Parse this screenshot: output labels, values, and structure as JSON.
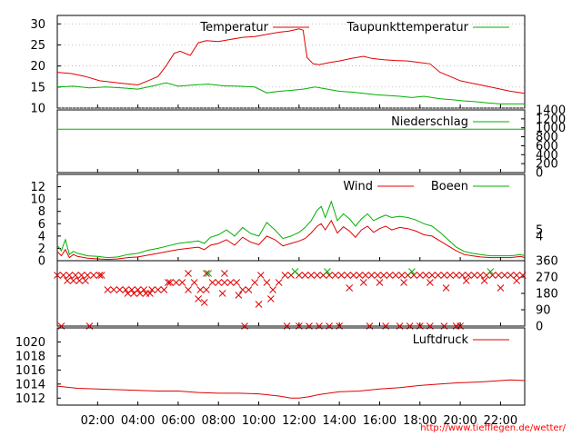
{
  "footer_url": "http://www.tiefflegen.de/wetter/",
  "x_axis": {
    "ticks": [
      "02:00",
      "04:00",
      "06:00",
      "08:00",
      "10:00",
      "12:00",
      "14:00",
      "16:00",
      "18:00",
      "20:00",
      "22:00"
    ],
    "range_hours": [
      0,
      23.2
    ]
  },
  "colors": {
    "red": "#e00000",
    "green": "#00b000",
    "grid": "#999999"
  },
  "chart_data": [
    {
      "type": "line",
      "panel": "temperature",
      "ylim": [
        10,
        32
      ],
      "y_ticks": [
        "10",
        "15",
        "20",
        "25",
        "30"
      ],
      "legend": [
        "Temperatur",
        "Taupunkttemperatur"
      ],
      "legend_placement": "top",
      "grid": true,
      "series": [
        {
          "name": "Temperatur",
          "color": "#e00000",
          "x": [
            0,
            0.7,
            1.4,
            2.1,
            3,
            4,
            4.5,
            5,
            5.4,
            5.8,
            6.1,
            6.6,
            7,
            7.4,
            8,
            8.6,
            9.2,
            9.8,
            10.4,
            11,
            11.5,
            12,
            12.2,
            12.4,
            12.7,
            13,
            13.5,
            14,
            14.6,
            15.2,
            15.6,
            16.2,
            16.8,
            17.4,
            18,
            18.5,
            19,
            19.5,
            20,
            20.5,
            21,
            21.5,
            22,
            22.5,
            23.2
          ],
          "y": [
            18.5,
            18.2,
            17.5,
            16.5,
            16.0,
            15.5,
            16.5,
            17.5,
            20.0,
            23.0,
            23.5,
            22.5,
            25.5,
            26.0,
            25.8,
            26.3,
            26.8,
            27.0,
            27.5,
            28.0,
            28.3,
            28.8,
            28.5,
            22.0,
            20.5,
            20.3,
            20.8,
            21.2,
            21.8,
            22.3,
            21.8,
            21.5,
            21.3,
            21.2,
            20.8,
            20.5,
            18.5,
            17.5,
            16.5,
            16.0,
            15.5,
            15.0,
            14.5,
            14.0,
            13.5
          ]
        },
        {
          "name": "Taupunkttemperatur",
          "color": "#00b000",
          "x": [
            0,
            0.8,
            1.6,
            2.4,
            3.2,
            4,
            4.8,
            5.4,
            6,
            6.8,
            7.5,
            8.2,
            9,
            9.8,
            10.4,
            11,
            11.6,
            12.2,
            12.8,
            13.4,
            14,
            14.6,
            15.2,
            15.8,
            16.4,
            17,
            17.6,
            18.2,
            19,
            19.6,
            20.2,
            20.8,
            21.4,
            22,
            22.6,
            23.2
          ],
          "y": [
            15.0,
            15.2,
            14.8,
            15.0,
            14.8,
            14.5,
            15.3,
            16.0,
            15.2,
            15.5,
            15.7,
            15.3,
            15.2,
            15.0,
            13.6,
            14.0,
            14.2,
            14.5,
            15.0,
            14.5,
            14.0,
            13.8,
            13.5,
            13.2,
            13.0,
            12.8,
            12.5,
            12.8,
            12.2,
            12.0,
            11.7,
            11.5,
            11.2,
            11.0,
            11.0,
            11.0
          ]
        }
      ]
    },
    {
      "type": "line",
      "panel": "precipitation",
      "ylim": [
        0,
        1400
      ],
      "y_ticks": [
        "0",
        "200",
        "400",
        "600",
        "800",
        "1000",
        "1200",
        "1400"
      ],
      "legend": [
        "Niederschlag"
      ],
      "legend_placement": "top-right",
      "series": [
        {
          "name": "Niederschlag",
          "color": "#00b000",
          "x": [
            0,
            23.2
          ],
          "y": [
            968,
            968
          ]
        }
      ]
    },
    {
      "type": "line",
      "panel": "wind",
      "ylim": [
        0,
        14
      ],
      "y_ticks": [
        "0",
        "2",
        "4",
        "6",
        "8",
        "10",
        "12"
      ],
      "legend": [
        "Wind",
        "Boeen"
      ],
      "legend_placement": "top",
      "right_ticks": [
        "4",
        "5"
      ],
      "series": [
        {
          "name": "Wind",
          "color": "#e00000",
          "x": [
            0,
            0.2,
            0.4,
            0.6,
            0.8,
            1,
            1.5,
            2,
            2.5,
            3,
            3.5,
            4,
            4.5,
            5,
            5.5,
            6,
            6.5,
            7,
            7.3,
            7.6,
            8,
            8.4,
            8.8,
            9.2,
            9.6,
            10,
            10.4,
            10.8,
            11.2,
            11.6,
            12,
            12.3,
            12.6,
            12.9,
            13.1,
            13.3,
            13.6,
            13.9,
            14.2,
            14.5,
            14.8,
            15.1,
            15.4,
            15.7,
            16,
            16.3,
            16.6,
            17,
            17.4,
            17.8,
            18.2,
            18.6,
            19,
            19.4,
            19.8,
            20.2,
            20.6,
            21,
            21.5,
            22,
            22.5,
            23,
            23.2
          ],
          "y": [
            1.5,
            0.8,
            1.8,
            0.5,
            1.0,
            0.7,
            0.4,
            0.3,
            0.2,
            0.3,
            0.5,
            0.6,
            0.9,
            1.2,
            1.5,
            1.8,
            2.0,
            2.2,
            1.8,
            2.5,
            2.8,
            3.4,
            2.5,
            3.8,
            3.0,
            2.6,
            4.0,
            3.4,
            2.4,
            2.8,
            3.2,
            3.6,
            4.5,
            5.6,
            6.0,
            5.0,
            6.5,
            4.5,
            5.5,
            4.8,
            3.8,
            5.0,
            5.6,
            4.6,
            5.2,
            5.6,
            5.0,
            5.4,
            5.2,
            4.8,
            4.2,
            4.0,
            3.2,
            2.4,
            1.6,
            1.0,
            0.8,
            0.6,
            0.5,
            0.5,
            0.5,
            0.7,
            0.5
          ]
        },
        {
          "name": "Boeen",
          "color": "#00b000",
          "x": [
            0,
            0.2,
            0.4,
            0.6,
            0.8,
            1,
            1.5,
            2,
            2.5,
            3,
            3.5,
            4,
            4.5,
            5,
            5.5,
            6,
            6.5,
            7,
            7.3,
            7.6,
            8,
            8.4,
            8.8,
            9.2,
            9.6,
            10,
            10.4,
            10.8,
            11.2,
            11.6,
            12,
            12.3,
            12.6,
            12.9,
            13.1,
            13.3,
            13.6,
            13.9,
            14.2,
            14.5,
            14.8,
            15.1,
            15.4,
            15.7,
            16,
            16.3,
            16.6,
            17,
            17.4,
            17.8,
            18.2,
            18.6,
            19,
            19.4,
            19.8,
            20.2,
            20.6,
            21,
            21.5,
            22,
            22.5,
            23,
            23.2
          ],
          "y": [
            2.5,
            1.6,
            3.4,
            1.0,
            1.5,
            1.2,
            0.8,
            0.7,
            0.5,
            0.6,
            1.0,
            1.2,
            1.7,
            2.0,
            2.4,
            2.8,
            3.0,
            3.2,
            2.8,
            3.8,
            4.2,
            5.0,
            4.0,
            5.4,
            4.4,
            4.0,
            6.2,
            5.0,
            3.6,
            4.0,
            4.6,
            5.4,
            6.5,
            8.2,
            8.8,
            7.0,
            9.6,
            6.5,
            7.6,
            6.8,
            5.6,
            6.8,
            7.6,
            6.5,
            7.0,
            7.4,
            7.0,
            7.2,
            7.0,
            6.6,
            6.0,
            5.6,
            4.6,
            3.4,
            2.2,
            1.5,
            1.2,
            1.0,
            0.8,
            0.8,
            0.8,
            1.0,
            0.8
          ]
        }
      ]
    },
    {
      "type": "scatter",
      "panel": "wind_direction",
      "ylim": [
        0,
        360
      ],
      "y_ticks": [
        "0",
        "90",
        "180",
        "270",
        "360"
      ],
      "marker": "x",
      "series": [
        {
          "name": "",
          "color": "#e00000",
          "x": [
            0,
            0.3,
            0.6,
            0.9,
            1.2,
            1.5,
            1.8,
            2.1,
            0.5,
            0.8,
            1.1,
            1.4,
            2.2,
            2.5,
            2.8,
            3.1,
            3.4,
            3.7,
            4,
            4.3,
            3.5,
            3.8,
            4.1,
            4.4,
            4.7,
            5,
            5.3,
            5.6,
            5.9,
            6.2,
            6.5,
            6.8,
            7.1,
            7.4,
            7.7,
            8,
            8.3,
            8.6,
            8.9,
            9.2,
            9.5,
            9.8,
            10.1,
            10.4,
            10.7,
            11,
            11.3,
            11.6,
            7,
            7.3,
            8.2,
            9,
            10,
            10.6,
            4.6,
            5.5,
            12,
            12.3,
            12.6,
            12.9,
            13.2,
            13.5,
            13.8,
            14.1,
            14.4,
            14.7,
            15,
            15.3,
            15.6,
            15.9,
            16.2,
            16.5,
            16.8,
            17.1,
            17.4,
            17.7,
            18,
            18.3,
            18.6,
            18.9,
            19.2,
            19.5,
            19.8,
            20.1,
            20.4,
            20.7,
            21,
            21.3,
            21.6,
            21.9,
            22.2,
            22.5,
            22.8,
            23.1,
            14.5,
            15.2,
            16,
            17.2,
            18.5,
            19.3,
            20.3,
            21.2,
            22,
            22.8,
            0.2,
            1.6,
            9.3,
            11.4,
            12,
            12.5,
            13,
            13.5,
            14,
            15.5,
            16.3,
            17,
            17.5,
            18,
            18.5,
            19.2,
            19.8,
            20,
            6.5,
            7.4,
            8.3
          ],
          "y": [
            280,
            280,
            280,
            280,
            280,
            280,
            280,
            280,
            250,
            250,
            250,
            250,
            280,
            200,
            200,
            200,
            200,
            200,
            200,
            200,
            180,
            180,
            180,
            180,
            200,
            200,
            200,
            240,
            240,
            240,
            200,
            240,
            200,
            200,
            240,
            240,
            240,
            240,
            240,
            200,
            200,
            240,
            280,
            240,
            200,
            240,
            280,
            280,
            150,
            130,
            180,
            170,
            120,
            150,
            180,
            240,
            280,
            280,
            280,
            280,
            280,
            280,
            280,
            280,
            280,
            280,
            280,
            280,
            280,
            280,
            280,
            280,
            280,
            280,
            280,
            280,
            280,
            280,
            280,
            280,
            280,
            280,
            280,
            280,
            280,
            280,
            280,
            280,
            280,
            280,
            280,
            280,
            280,
            280,
            210,
            240,
            240,
            240,
            240,
            210,
            250,
            250,
            210,
            250,
            0,
            0,
            0,
            0,
            0,
            0,
            0,
            0,
            0,
            0,
            0,
            0,
            0,
            0,
            0,
            0,
            0,
            0,
            290,
            290,
            290
          ]
        },
        {
          "name": "",
          "color": "#00b000",
          "x": [
            7.5,
            11.8,
            13.4,
            17.6,
            21.5
          ],
          "y": [
            290,
            300,
            300,
            300,
            300
          ]
        }
      ]
    },
    {
      "type": "line",
      "panel": "pressure",
      "ylim": [
        1011,
        1022
      ],
      "y_ticks": [
        "1012",
        "1014",
        "1016",
        "1018",
        "1020"
      ],
      "legend": [
        "Luftdruck"
      ],
      "legend_placement": "top-right",
      "series": [
        {
          "name": "Luftdruck",
          "color": "#e00000",
          "x": [
            0,
            1,
            2,
            3,
            4,
            5,
            6,
            7,
            8,
            9,
            10,
            11,
            11.6,
            12,
            12.5,
            13,
            14,
            15,
            16,
            17,
            18,
            19,
            20,
            21,
            22,
            22.5,
            23.2
          ],
          "y": [
            1013.7,
            1013.4,
            1013.3,
            1013.2,
            1013.1,
            1013.0,
            1013.0,
            1012.8,
            1012.7,
            1012.7,
            1012.6,
            1012.3,
            1012.0,
            1012.0,
            1012.2,
            1012.5,
            1012.9,
            1013.0,
            1013.3,
            1013.5,
            1013.8,
            1014.0,
            1014.2,
            1014.3,
            1014.5,
            1014.6,
            1014.5
          ]
        }
      ]
    }
  ]
}
